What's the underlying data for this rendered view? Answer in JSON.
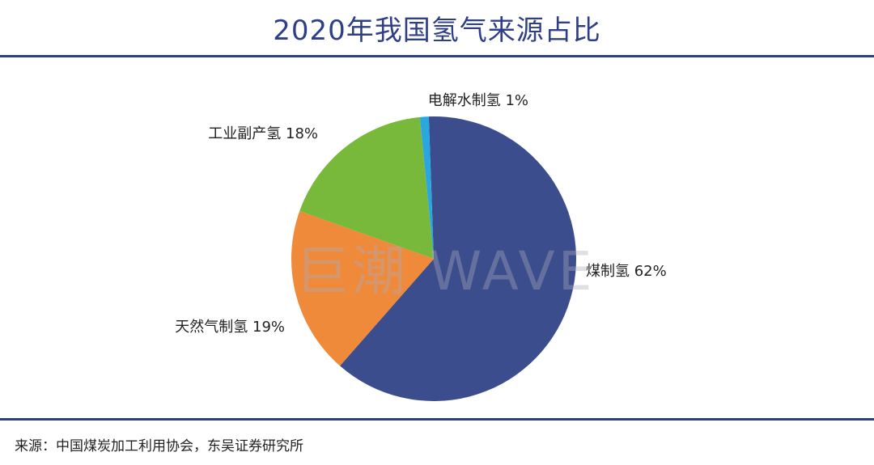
{
  "title": "2020年我国氢气来源占比",
  "source": "来源：中国煤炭加工利用协会，东吴证券研究所",
  "watermark": "巨潮 WAVE",
  "colors": {
    "title": "#2f3f86",
    "rule": "#2f3f86"
  },
  "chart_data": {
    "type": "pie",
    "title": "2020年我国氢气来源占比",
    "start_angle_deg": -2,
    "direction": "clockwise",
    "slices": [
      {
        "label": "煤制氢",
        "value": 62,
        "display": "62%",
        "color": "#3b4d8c"
      },
      {
        "label": "天然气制氢",
        "value": 19,
        "display": "19%",
        "color": "#ef8a3a"
      },
      {
        "label": "工业副产氢",
        "value": 18,
        "display": "18%",
        "color": "#78b83a"
      },
      {
        "label": "电解水制氢",
        "value": 1,
        "display": "1%",
        "color": "#2aa7df"
      }
    ]
  }
}
